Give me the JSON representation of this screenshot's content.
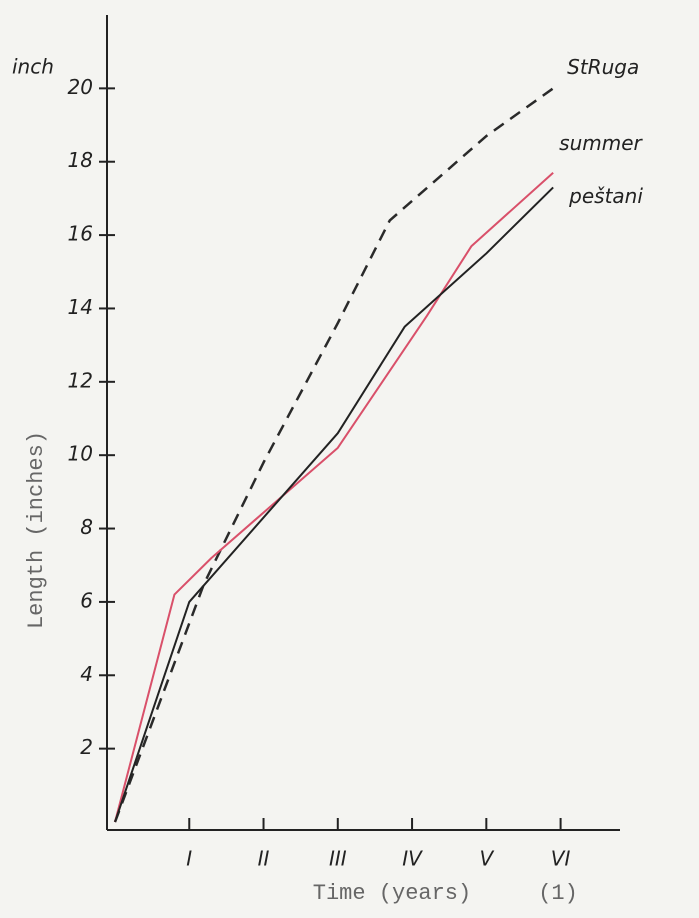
{
  "chart_data": {
    "type": "line",
    "y_unit": "inch",
    "xlabel": "Time (years)",
    "xlabel_note": "(1)",
    "ylabel": "Length (inches)",
    "xlim": [
      0,
      6.8
    ],
    "ylim": [
      0,
      22
    ],
    "xticks": [
      {
        "value": 1,
        "label": "I"
      },
      {
        "value": 2,
        "label": "II"
      },
      {
        "value": 3,
        "label": "III"
      },
      {
        "value": 4,
        "label": "IV"
      },
      {
        "value": 5,
        "label": "V"
      },
      {
        "value": 6,
        "label": "VI"
      }
    ],
    "yticks": [
      2,
      4,
      6,
      8,
      10,
      12,
      14,
      16,
      18,
      20
    ],
    "series": [
      {
        "name": "StRuga",
        "color": "#2a2a2a",
        "dashed": true,
        "x": [
          0,
          1.2,
          2,
          3,
          3.7,
          5,
          5.9
        ],
        "values": [
          0,
          6.5,
          9.8,
          13.6,
          16.4,
          18.7,
          20
        ]
      },
      {
        "name": "summer",
        "color": "#d9506a",
        "dashed": false,
        "x": [
          0,
          0.8,
          1.3,
          3,
          4.2,
          4.8,
          5.9
        ],
        "values": [
          0,
          6.2,
          7.2,
          10.2,
          13.8,
          15.7,
          17.7
        ]
      },
      {
        "name": "peštani",
        "color": "#222222",
        "dashed": false,
        "x": [
          0,
          1,
          3,
          3.9,
          5,
          5.9
        ],
        "values": [
          0,
          6,
          10.6,
          13.5,
          15.5,
          17.3
        ]
      }
    ]
  }
}
